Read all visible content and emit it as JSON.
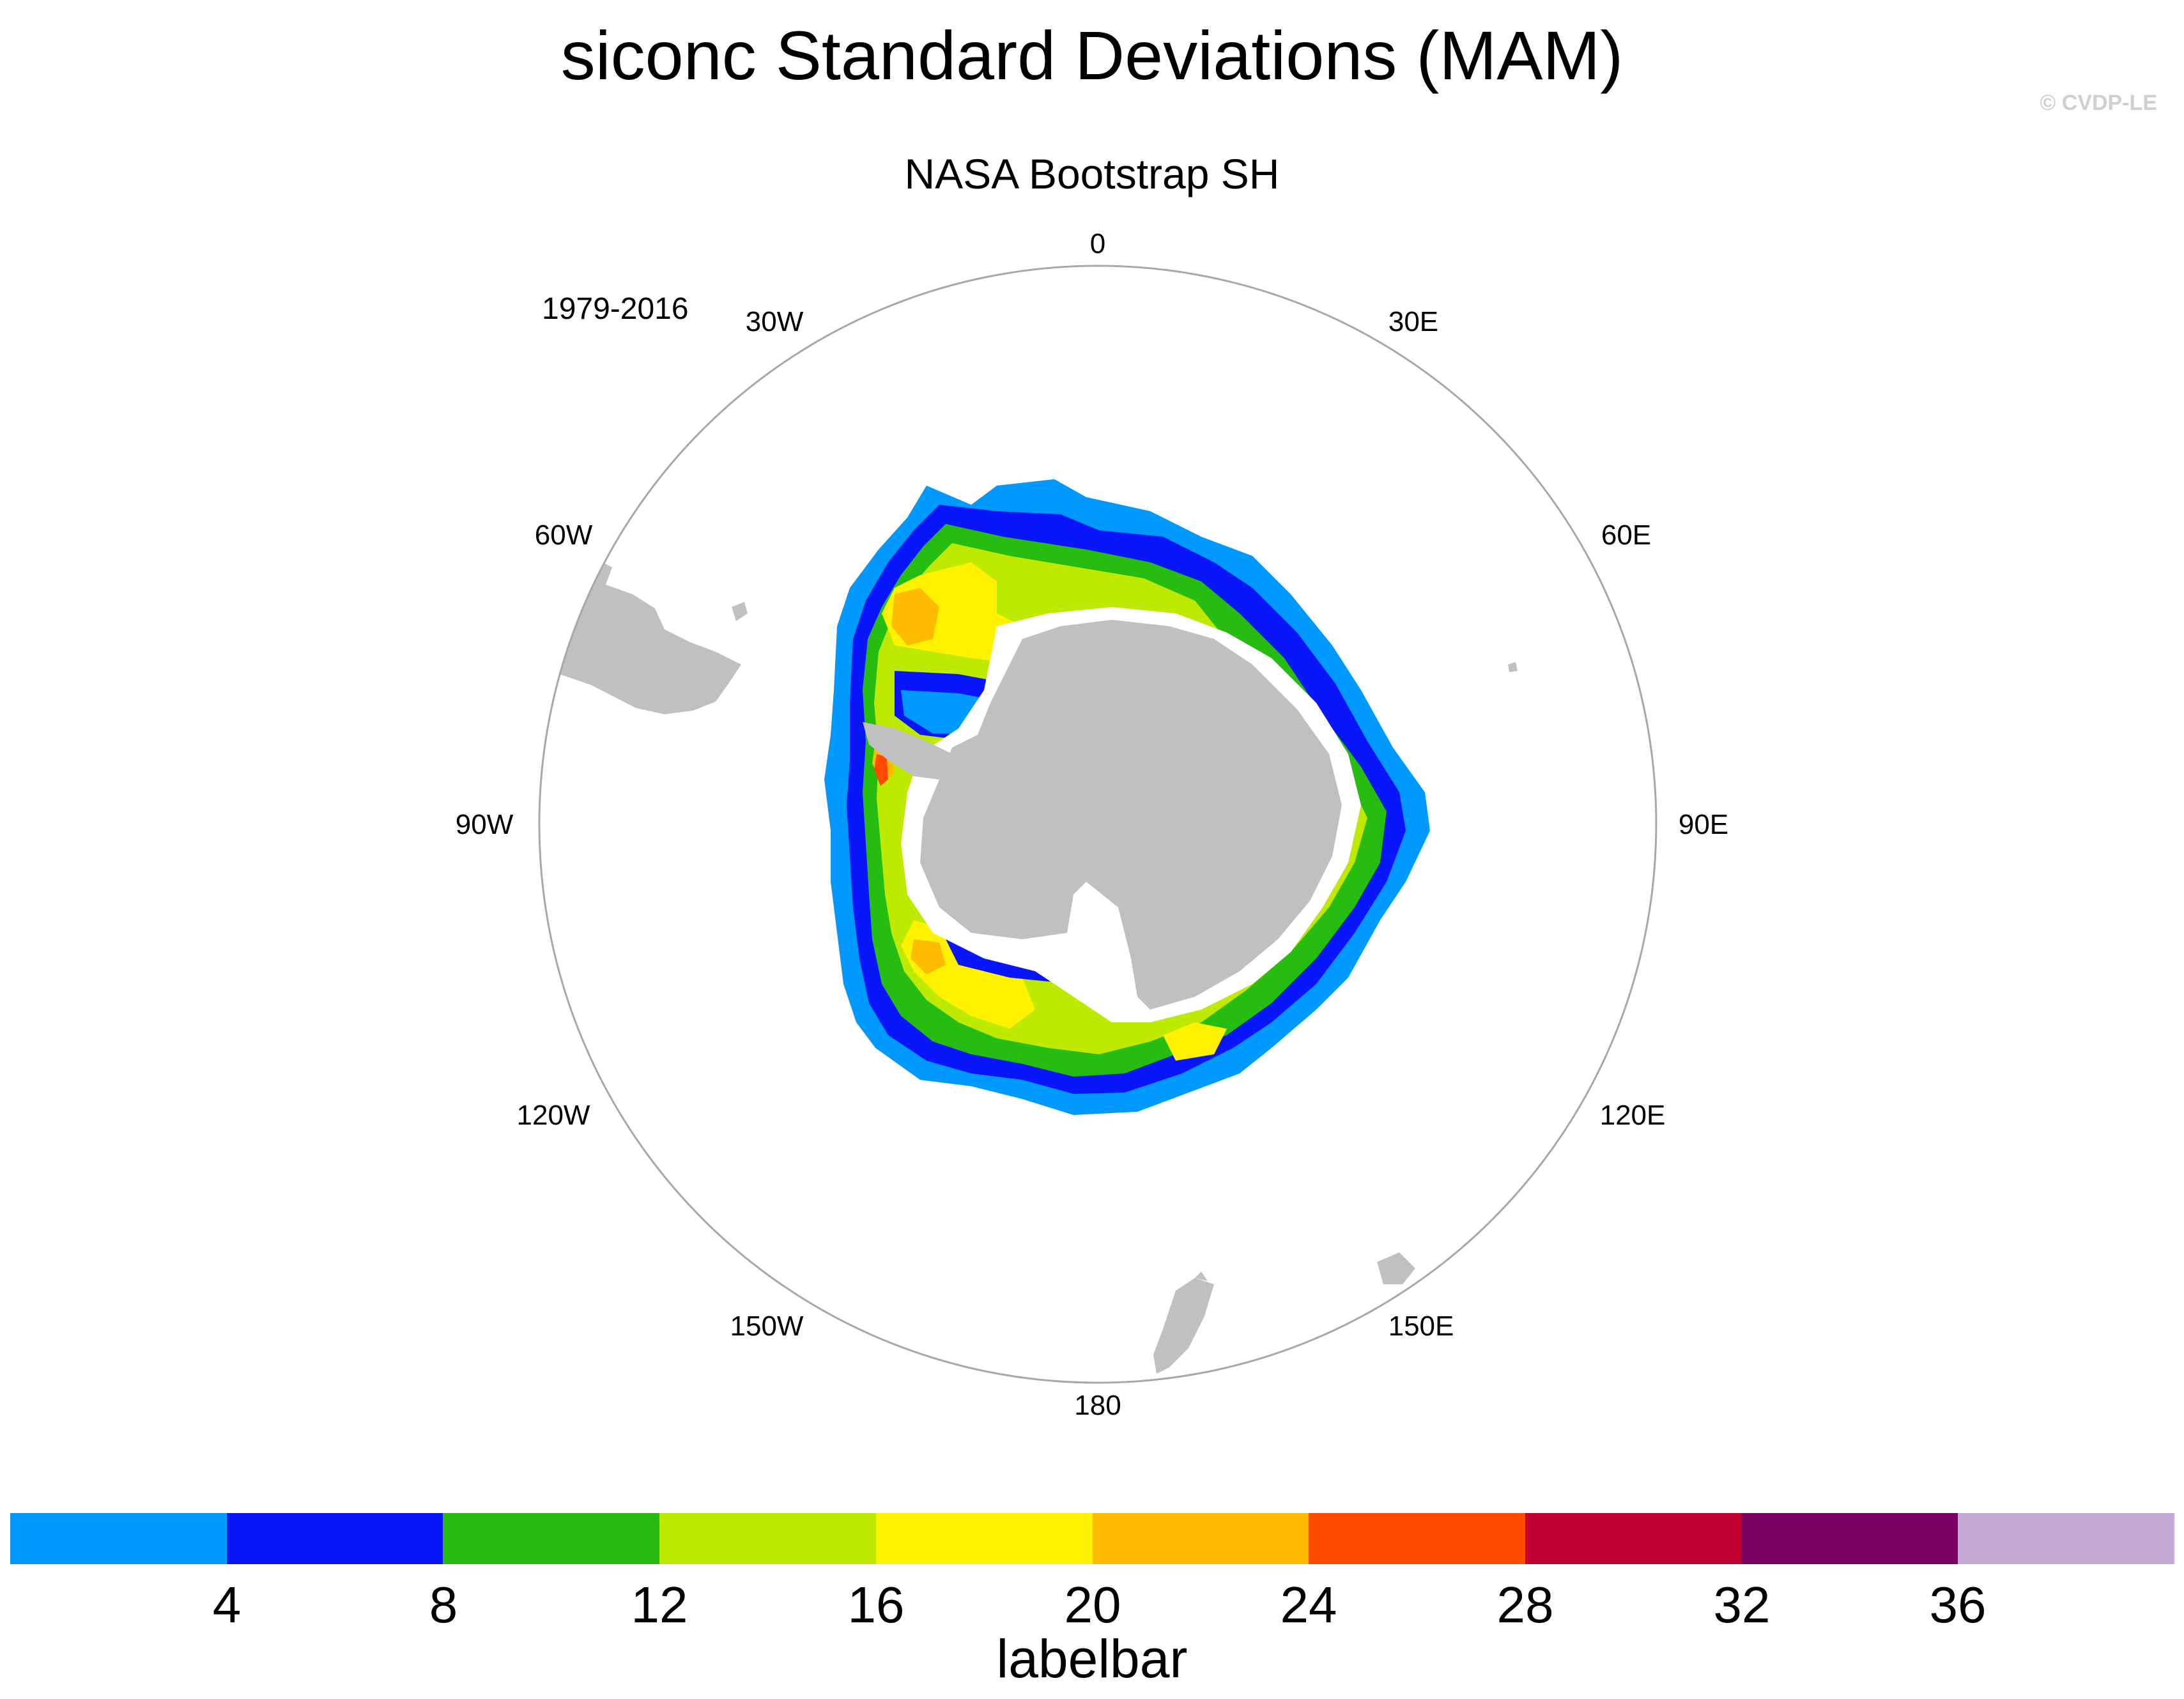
{
  "title": "siconc Standard Deviations (MAM)",
  "copyright": "© CVDP-LE",
  "subtitle": "NASA Bootstrap SH",
  "period": "1979-2016",
  "longitude_labels": [
    "0",
    "30E",
    "60E",
    "90E",
    "120E",
    "150E",
    "180",
    "150W",
    "120W",
    "90W",
    "60W",
    "30W"
  ],
  "colors": {
    "land": "#c0c0c0",
    "grid_circle": "#a8a8a8",
    "levels": [
      "#0099ff",
      "#0a16fa",
      "#26bd10",
      "#bdea00",
      "#fff200",
      "#ffbb00",
      "#ff4a00",
      "#c0002e",
      "#7a0062",
      "#c6a8d4"
    ]
  },
  "labelbar": {
    "ticks": [
      "4",
      "8",
      "12",
      "16",
      "20",
      "24",
      "28",
      "32",
      "36"
    ],
    "title": "labelbar"
  }
}
